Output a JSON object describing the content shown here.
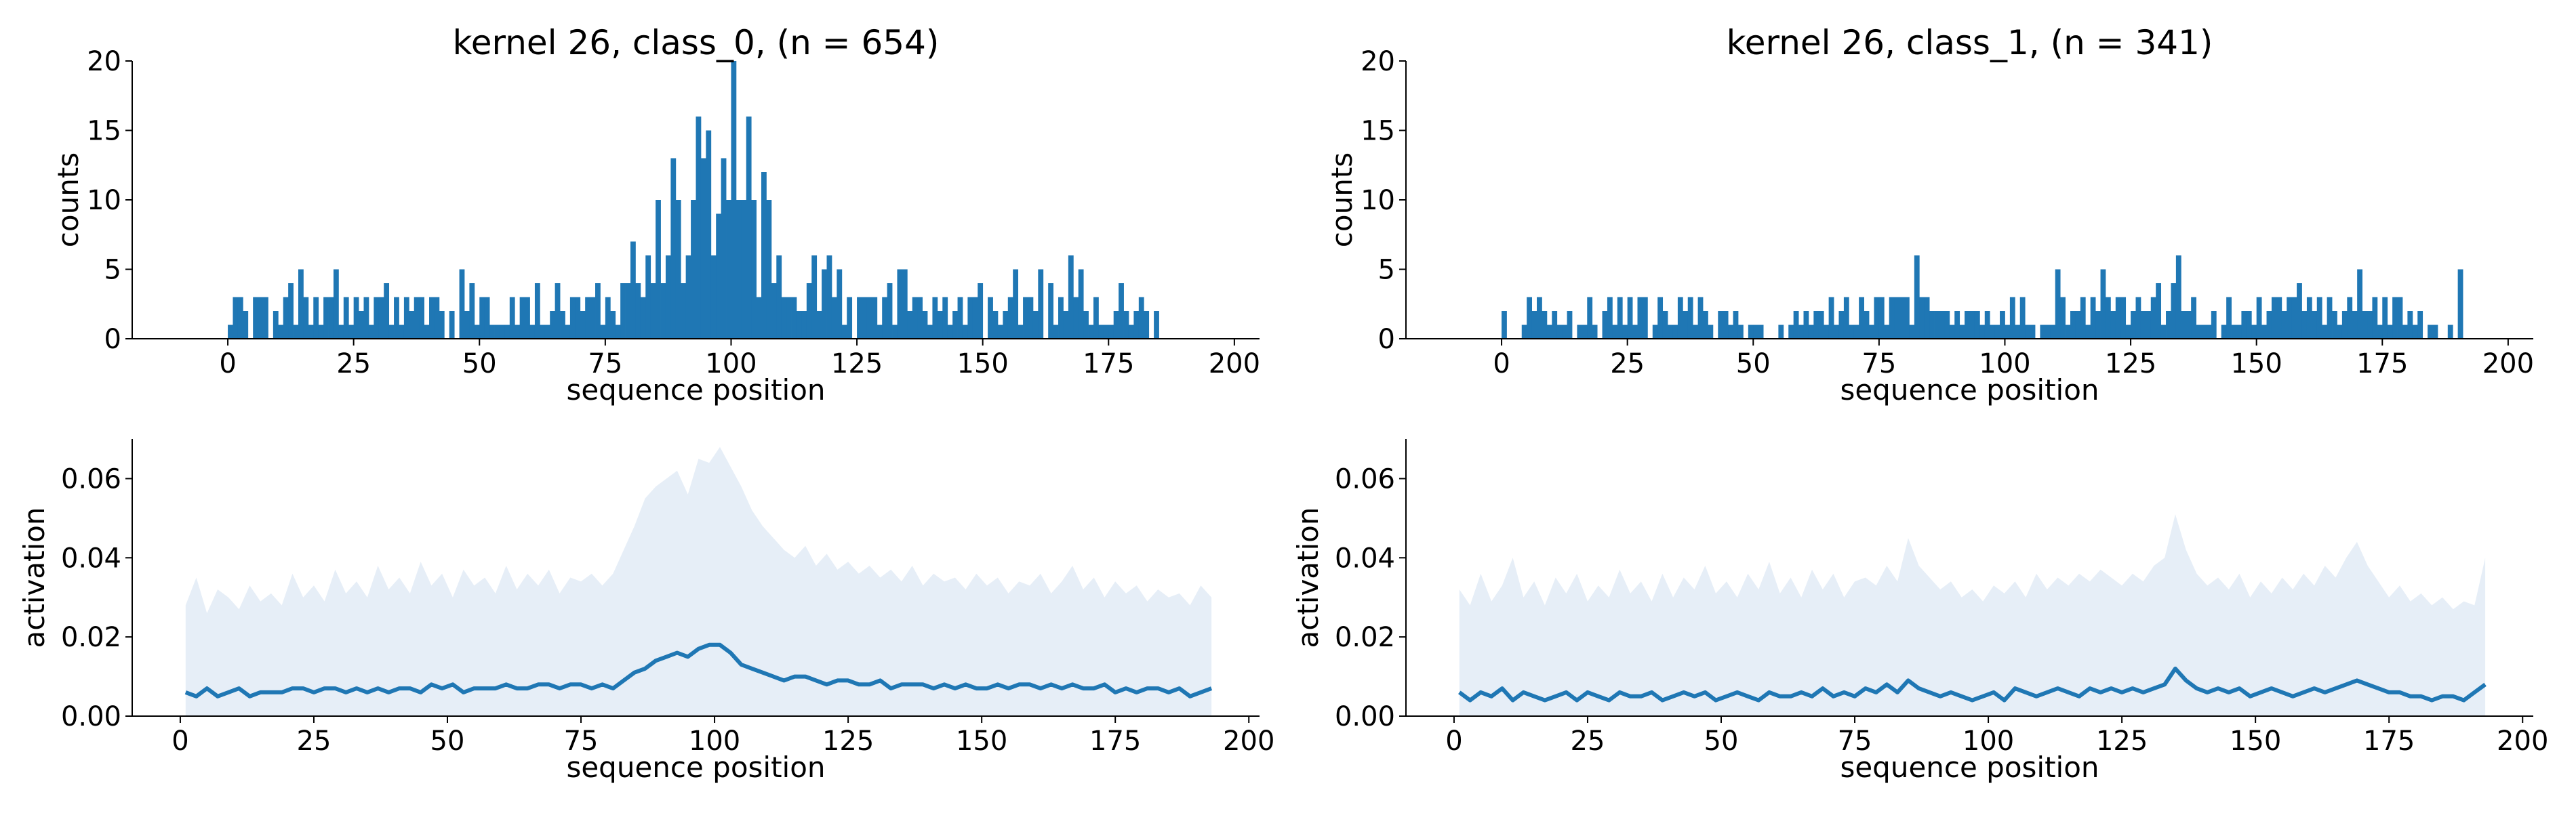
{
  "figure": {
    "accent": "#1f77b4",
    "band_fill": "#e6eef7"
  },
  "chart_data": [
    {
      "type": "bar",
      "panel": "top-left",
      "title": "kernel 26, class_0, (n = 654)",
      "xlabel": "sequence position",
      "ylabel": "counts",
      "xlim": [
        -19,
        205
      ],
      "ylim": [
        0,
        20
      ],
      "xticks": [
        0,
        25,
        50,
        75,
        100,
        125,
        150,
        175,
        200
      ],
      "yticks": [
        0,
        5,
        10,
        15,
        20
      ],
      "grid": false,
      "x_start": 0,
      "values": [
        1,
        3,
        3,
        2,
        0,
        3,
        3,
        3,
        0,
        2,
        1,
        3,
        4,
        1,
        5,
        3,
        1,
        3,
        1,
        3,
        3,
        5,
        1,
        3,
        1,
        3,
        2,
        3,
        1,
        3,
        3,
        4,
        1,
        3,
        1,
        3,
        2,
        3,
        3,
        1,
        3,
        3,
        2,
        0,
        2,
        0,
        5,
        2,
        4,
        1,
        3,
        3,
        1,
        1,
        1,
        1,
        3,
        1,
        3,
        3,
        1,
        4,
        1,
        1,
        2,
        4,
        2,
        1,
        3,
        3,
        2,
        3,
        3,
        4,
        1,
        3,
        2,
        1,
        4,
        4,
        7,
        4,
        3,
        6,
        4,
        10,
        4,
        6,
        13,
        10,
        4,
        6,
        10,
        16,
        13,
        15,
        6,
        9,
        13,
        10,
        20,
        10,
        10,
        16,
        10,
        3,
        12,
        10,
        4,
        6,
        3,
        3,
        3,
        2,
        2,
        4,
        6,
        2,
        5,
        6,
        3,
        5,
        1,
        3,
        0,
        3,
        3,
        3,
        3,
        1,
        3,
        4,
        1,
        5,
        5,
        2,
        3,
        3,
        2,
        1,
        3,
        2,
        3,
        1,
        2,
        3,
        1,
        3,
        3,
        4,
        0,
        3,
        2,
        1,
        2,
        3,
        5,
        1,
        3,
        3,
        2,
        5,
        0,
        4,
        1,
        3,
        2,
        6,
        3,
        5,
        2,
        1,
        3,
        1,
        1,
        1,
        2,
        4,
        2,
        1,
        2,
        3,
        2,
        0,
        2,
        0,
        0,
        0,
        0,
        0,
        0,
        0,
        0
      ]
    },
    {
      "type": "bar",
      "panel": "top-right",
      "title": "kernel 26, class_1, (n = 341)",
      "xlabel": "sequence position",
      "ylabel": "counts",
      "xlim": [
        -19,
        205
      ],
      "ylim": [
        0,
        20
      ],
      "xticks": [
        0,
        25,
        50,
        75,
        100,
        125,
        150,
        175,
        200
      ],
      "yticks": [
        0,
        5,
        10,
        15,
        20
      ],
      "grid": false,
      "x_start": 0,
      "values": [
        2,
        0,
        0,
        0,
        1,
        3,
        2,
        3,
        2,
        1,
        2,
        1,
        1,
        2,
        0,
        1,
        1,
        3,
        1,
        0,
        2,
        3,
        1,
        3,
        1,
        3,
        1,
        3,
        3,
        0,
        1,
        3,
        2,
        1,
        1,
        3,
        2,
        3,
        1,
        3,
        2,
        1,
        0,
        2,
        2,
        1,
        2,
        1,
        0,
        1,
        1,
        1,
        0,
        0,
        0,
        1,
        0,
        1,
        2,
        1,
        2,
        1,
        2,
        2,
        1,
        3,
        1,
        2,
        3,
        1,
        1,
        3,
        2,
        1,
        3,
        3,
        1,
        3,
        3,
        3,
        3,
        1,
        6,
        3,
        3,
        2,
        2,
        2,
        2,
        1,
        2,
        1,
        2,
        2,
        2,
        1,
        2,
        1,
        1,
        2,
        1,
        3,
        1,
        3,
        1,
        1,
        0,
        1,
        1,
        1,
        5,
        3,
        1,
        2,
        2,
        3,
        1,
        3,
        2,
        5,
        3,
        2,
        3,
        3,
        1,
        2,
        3,
        2,
        2,
        3,
        4,
        1,
        2,
        4,
        6,
        2,
        2,
        3,
        1,
        1,
        1,
        2,
        0,
        1,
        3,
        1,
        1,
        2,
        2,
        1,
        3,
        1,
        2,
        3,
        3,
        2,
        3,
        3,
        4,
        2,
        3,
        2,
        3,
        1,
        3,
        2,
        1,
        2,
        3,
        2,
        5,
        2,
        2,
        3,
        1,
        3,
        1,
        3,
        3,
        1,
        2,
        1,
        2,
        0,
        1,
        1,
        0,
        0,
        1,
        0,
        5,
        0,
        0,
        0,
        0,
        0,
        0
      ]
    },
    {
      "type": "area",
      "panel": "bottom-left",
      "title": "",
      "xlabel": "sequence position",
      "ylabel": "activation",
      "xlim": [
        -9,
        202
      ],
      "ylim": [
        0,
        0.07
      ],
      "xticks": [
        0,
        25,
        50,
        75,
        100,
        125,
        150,
        175,
        200
      ],
      "yticks": [
        0.0,
        0.02,
        0.04,
        0.06
      ],
      "ytick_labels": [
        "0.00",
        "0.02",
        "0.04",
        "0.06"
      ],
      "grid": false,
      "x": [
        1,
        3,
        5,
        7,
        9,
        11,
        13,
        15,
        17,
        19,
        21,
        23,
        25,
        27,
        29,
        31,
        33,
        35,
        37,
        39,
        41,
        43,
        45,
        47,
        49,
        51,
        53,
        55,
        57,
        59,
        61,
        63,
        65,
        67,
        69,
        71,
        73,
        75,
        77,
        79,
        81,
        83,
        85,
        87,
        89,
        91,
        93,
        95,
        97,
        99,
        101,
        103,
        105,
        107,
        109,
        111,
        113,
        115,
        117,
        119,
        121,
        123,
        125,
        127,
        129,
        131,
        133,
        135,
        137,
        139,
        141,
        143,
        145,
        147,
        149,
        151,
        153,
        155,
        157,
        159,
        161,
        163,
        165,
        167,
        169,
        171,
        173,
        175,
        177,
        179,
        181,
        183,
        185,
        187,
        189,
        191,
        193
      ],
      "series": [
        {
          "kind": "line",
          "values": [
            0.006,
            0.005,
            0.007,
            0.005,
            0.006,
            0.007,
            0.005,
            0.006,
            0.006,
            0.006,
            0.007,
            0.007,
            0.006,
            0.007,
            0.007,
            0.006,
            0.007,
            0.006,
            0.007,
            0.006,
            0.007,
            0.007,
            0.006,
            0.008,
            0.007,
            0.008,
            0.006,
            0.007,
            0.007,
            0.007,
            0.008,
            0.007,
            0.007,
            0.008,
            0.008,
            0.007,
            0.008,
            0.008,
            0.007,
            0.008,
            0.007,
            0.009,
            0.011,
            0.012,
            0.014,
            0.015,
            0.016,
            0.015,
            0.017,
            0.018,
            0.018,
            0.016,
            0.013,
            0.012,
            0.011,
            0.01,
            0.009,
            0.01,
            0.01,
            0.009,
            0.008,
            0.009,
            0.009,
            0.008,
            0.008,
            0.009,
            0.007,
            0.008,
            0.008,
            0.008,
            0.007,
            0.008,
            0.007,
            0.008,
            0.007,
            0.007,
            0.008,
            0.007,
            0.008,
            0.008,
            0.007,
            0.008,
            0.007,
            0.008,
            0.007,
            0.007,
            0.008,
            0.006,
            0.007,
            0.006,
            0.007,
            0.007,
            0.006,
            0.007,
            0.005,
            0.006,
            0.007
          ]
        },
        {
          "kind": "band_upper",
          "values": [
            0.028,
            0.035,
            0.026,
            0.032,
            0.03,
            0.027,
            0.033,
            0.029,
            0.031,
            0.028,
            0.036,
            0.03,
            0.033,
            0.029,
            0.037,
            0.031,
            0.034,
            0.03,
            0.038,
            0.032,
            0.035,
            0.031,
            0.039,
            0.033,
            0.036,
            0.03,
            0.037,
            0.033,
            0.035,
            0.031,
            0.038,
            0.032,
            0.036,
            0.033,
            0.037,
            0.031,
            0.035,
            0.034,
            0.036,
            0.033,
            0.036,
            0.042,
            0.048,
            0.055,
            0.058,
            0.06,
            0.062,
            0.056,
            0.065,
            0.064,
            0.068,
            0.063,
            0.058,
            0.052,
            0.048,
            0.045,
            0.042,
            0.04,
            0.043,
            0.038,
            0.041,
            0.037,
            0.039,
            0.036,
            0.038,
            0.035,
            0.037,
            0.034,
            0.038,
            0.033,
            0.036,
            0.034,
            0.035,
            0.032,
            0.036,
            0.033,
            0.035,
            0.031,
            0.034,
            0.033,
            0.036,
            0.031,
            0.034,
            0.038,
            0.032,
            0.035,
            0.03,
            0.034,
            0.031,
            0.033,
            0.029,
            0.032,
            0.03,
            0.031,
            0.028,
            0.033,
            0.03
          ]
        }
      ]
    },
    {
      "type": "area",
      "panel": "bottom-right",
      "title": "",
      "xlabel": "sequence position",
      "ylabel": "activation",
      "xlim": [
        -9,
        202
      ],
      "ylim": [
        0,
        0.07
      ],
      "xticks": [
        0,
        25,
        50,
        75,
        100,
        125,
        150,
        175,
        200
      ],
      "yticks": [
        0.0,
        0.02,
        0.04,
        0.06
      ],
      "ytick_labels": [
        "0.00",
        "0.02",
        "0.04",
        "0.06"
      ],
      "grid": false,
      "x": [
        1,
        3,
        5,
        7,
        9,
        11,
        13,
        15,
        17,
        19,
        21,
        23,
        25,
        27,
        29,
        31,
        33,
        35,
        37,
        39,
        41,
        43,
        45,
        47,
        49,
        51,
        53,
        55,
        57,
        59,
        61,
        63,
        65,
        67,
        69,
        71,
        73,
        75,
        77,
        79,
        81,
        83,
        85,
        87,
        89,
        91,
        93,
        95,
        97,
        99,
        101,
        103,
        105,
        107,
        109,
        111,
        113,
        115,
        117,
        119,
        121,
        123,
        125,
        127,
        129,
        131,
        133,
        135,
        137,
        139,
        141,
        143,
        145,
        147,
        149,
        151,
        153,
        155,
        157,
        159,
        161,
        163,
        165,
        167,
        169,
        171,
        173,
        175,
        177,
        179,
        181,
        183,
        185,
        187,
        189,
        191,
        193
      ],
      "series": [
        {
          "kind": "line",
          "values": [
            0.006,
            0.004,
            0.006,
            0.005,
            0.007,
            0.004,
            0.006,
            0.005,
            0.004,
            0.005,
            0.006,
            0.004,
            0.006,
            0.005,
            0.004,
            0.006,
            0.005,
            0.005,
            0.006,
            0.004,
            0.005,
            0.006,
            0.005,
            0.006,
            0.004,
            0.005,
            0.006,
            0.005,
            0.004,
            0.006,
            0.005,
            0.005,
            0.006,
            0.005,
            0.007,
            0.005,
            0.006,
            0.005,
            0.007,
            0.006,
            0.008,
            0.006,
            0.009,
            0.007,
            0.006,
            0.005,
            0.006,
            0.005,
            0.004,
            0.005,
            0.006,
            0.004,
            0.007,
            0.006,
            0.005,
            0.006,
            0.007,
            0.006,
            0.005,
            0.007,
            0.006,
            0.007,
            0.006,
            0.007,
            0.006,
            0.007,
            0.008,
            0.012,
            0.009,
            0.007,
            0.006,
            0.007,
            0.006,
            0.007,
            0.005,
            0.006,
            0.007,
            0.006,
            0.005,
            0.006,
            0.007,
            0.006,
            0.007,
            0.008,
            0.009,
            0.008,
            0.007,
            0.006,
            0.006,
            0.005,
            0.005,
            0.004,
            0.005,
            0.005,
            0.004,
            0.006,
            0.008
          ]
        },
        {
          "kind": "band_upper",
          "values": [
            0.032,
            0.028,
            0.036,
            0.029,
            0.033,
            0.04,
            0.03,
            0.034,
            0.028,
            0.035,
            0.031,
            0.036,
            0.029,
            0.033,
            0.03,
            0.037,
            0.031,
            0.034,
            0.029,
            0.036,
            0.03,
            0.035,
            0.032,
            0.038,
            0.031,
            0.034,
            0.03,
            0.036,
            0.032,
            0.039,
            0.031,
            0.035,
            0.03,
            0.037,
            0.032,
            0.036,
            0.03,
            0.034,
            0.035,
            0.033,
            0.038,
            0.034,
            0.045,
            0.038,
            0.035,
            0.032,
            0.034,
            0.03,
            0.032,
            0.029,
            0.033,
            0.031,
            0.034,
            0.03,
            0.036,
            0.032,
            0.035,
            0.033,
            0.036,
            0.034,
            0.037,
            0.035,
            0.033,
            0.036,
            0.034,
            0.038,
            0.04,
            0.051,
            0.042,
            0.036,
            0.033,
            0.035,
            0.032,
            0.036,
            0.03,
            0.034,
            0.031,
            0.035,
            0.032,
            0.036,
            0.033,
            0.038,
            0.035,
            0.04,
            0.044,
            0.038,
            0.034,
            0.03,
            0.033,
            0.029,
            0.031,
            0.028,
            0.03,
            0.027,
            0.029,
            0.028,
            0.04
          ]
        }
      ]
    }
  ]
}
